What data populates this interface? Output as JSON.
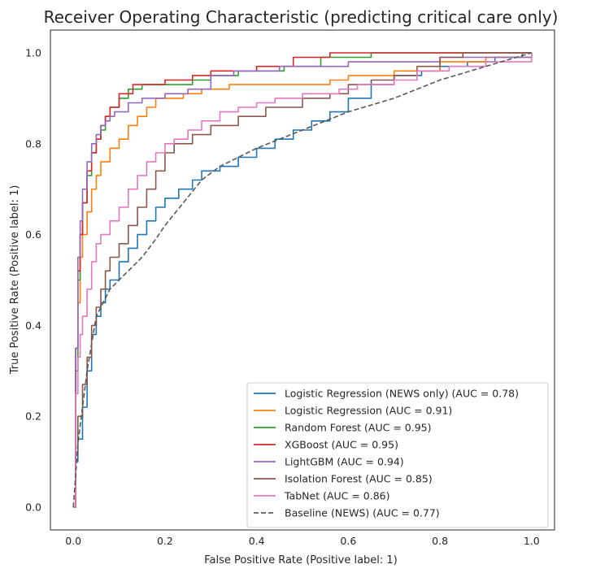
{
  "chart_data": {
    "type": "line",
    "title": "Receiver Operating Characteristic (predicting critical care only)",
    "xlabel": "False Positive Rate (Positive label: 1)",
    "ylabel": "True Positive Rate (Positive label: 1)",
    "xlim": [
      -0.05,
      1.05
    ],
    "ylim": [
      -0.05,
      1.05
    ],
    "xticks": [
      "0.0",
      "0.2",
      "0.4",
      "0.6",
      "0.8",
      "1.0"
    ],
    "yticks": [
      "0.0",
      "0.2",
      "0.4",
      "0.6",
      "0.8",
      "1.0"
    ],
    "grid": false,
    "legend_position": "lower-right",
    "series": [
      {
        "name": "Logistic Regression (NEWS only) (AUC = 0.78)",
        "color": "#1f77b4",
        "dash": false,
        "points": [
          [
            0,
            0
          ],
          [
            0.005,
            0.1
          ],
          [
            0.01,
            0.15
          ],
          [
            0.02,
            0.22
          ],
          [
            0.03,
            0.3
          ],
          [
            0.04,
            0.38
          ],
          [
            0.05,
            0.42
          ],
          [
            0.06,
            0.45
          ],
          [
            0.07,
            0.48
          ],
          [
            0.08,
            0.5
          ],
          [
            0.1,
            0.54
          ],
          [
            0.12,
            0.57
          ],
          [
            0.14,
            0.6
          ],
          [
            0.16,
            0.63
          ],
          [
            0.18,
            0.66
          ],
          [
            0.2,
            0.68
          ],
          [
            0.23,
            0.7
          ],
          [
            0.26,
            0.72
          ],
          [
            0.28,
            0.74
          ],
          [
            0.3,
            0.74
          ],
          [
            0.32,
            0.75
          ],
          [
            0.36,
            0.77
          ],
          [
            0.4,
            0.79
          ],
          [
            0.44,
            0.81
          ],
          [
            0.48,
            0.83
          ],
          [
            0.52,
            0.85
          ],
          [
            0.56,
            0.87
          ],
          [
            0.6,
            0.9
          ],
          [
            0.65,
            0.93
          ],
          [
            0.7,
            0.95
          ],
          [
            0.76,
            0.96
          ],
          [
            0.8,
            0.97
          ],
          [
            0.86,
            0.98
          ],
          [
            0.92,
            0.99
          ],
          [
            0.98,
            1.0
          ],
          [
            1.0,
            1.0
          ]
        ]
      },
      {
        "name": "Logistic Regression (AUC = 0.91)",
        "color": "#ff7f0e",
        "dash": false,
        "points": [
          [
            0,
            0
          ],
          [
            0.005,
            0.3
          ],
          [
            0.01,
            0.45
          ],
          [
            0.015,
            0.55
          ],
          [
            0.02,
            0.6
          ],
          [
            0.03,
            0.65
          ],
          [
            0.04,
            0.7
          ],
          [
            0.05,
            0.73
          ],
          [
            0.06,
            0.76
          ],
          [
            0.08,
            0.79
          ],
          [
            0.1,
            0.81
          ],
          [
            0.12,
            0.84
          ],
          [
            0.14,
            0.86
          ],
          [
            0.16,
            0.88
          ],
          [
            0.18,
            0.9
          ],
          [
            0.2,
            0.9
          ],
          [
            0.24,
            0.91
          ],
          [
            0.28,
            0.92
          ],
          [
            0.34,
            0.93
          ],
          [
            0.4,
            0.93
          ],
          [
            0.5,
            0.93
          ],
          [
            0.56,
            0.94
          ],
          [
            0.6,
            0.95
          ],
          [
            0.7,
            0.96
          ],
          [
            0.8,
            0.98
          ],
          [
            0.9,
            0.99
          ],
          [
            1.0,
            1.0
          ]
        ]
      },
      {
        "name": "Random Forest (AUC = 0.95)",
        "color": "#2ca02c",
        "dash": false,
        "points": [
          [
            0,
            0
          ],
          [
            0.005,
            0.3
          ],
          [
            0.01,
            0.5
          ],
          [
            0.015,
            0.6
          ],
          [
            0.02,
            0.67
          ],
          [
            0.03,
            0.73
          ],
          [
            0.04,
            0.78
          ],
          [
            0.05,
            0.81
          ],
          [
            0.06,
            0.83
          ],
          [
            0.07,
            0.86
          ],
          [
            0.08,
            0.88
          ],
          [
            0.1,
            0.9
          ],
          [
            0.12,
            0.92
          ],
          [
            0.15,
            0.93
          ],
          [
            0.2,
            0.93
          ],
          [
            0.26,
            0.94
          ],
          [
            0.3,
            0.95
          ],
          [
            0.36,
            0.96
          ],
          [
            0.46,
            0.97
          ],
          [
            0.54,
            0.99
          ],
          [
            0.65,
            1.0
          ],
          [
            1.0,
            1.0
          ]
        ]
      },
      {
        "name": "XGBoost (AUC = 0.95)",
        "color": "#d62728",
        "dash": false,
        "points": [
          [
            0,
            0
          ],
          [
            0.005,
            0.35
          ],
          [
            0.01,
            0.52
          ],
          [
            0.015,
            0.6
          ],
          [
            0.02,
            0.67
          ],
          [
            0.03,
            0.74
          ],
          [
            0.04,
            0.78
          ],
          [
            0.05,
            0.81
          ],
          [
            0.06,
            0.84
          ],
          [
            0.07,
            0.86
          ],
          [
            0.08,
            0.88
          ],
          [
            0.1,
            0.91
          ],
          [
            0.13,
            0.93
          ],
          [
            0.18,
            0.93
          ],
          [
            0.2,
            0.94
          ],
          [
            0.26,
            0.95
          ],
          [
            0.3,
            0.96
          ],
          [
            0.4,
            0.97
          ],
          [
            0.48,
            0.99
          ],
          [
            0.56,
            1.0
          ],
          [
            1.0,
            1.0
          ]
        ]
      },
      {
        "name": "LightGBM (AUC = 0.94)",
        "color": "#9467bd",
        "dash": false,
        "points": [
          [
            0,
            0
          ],
          [
            0.005,
            0.35
          ],
          [
            0.01,
            0.55
          ],
          [
            0.015,
            0.63
          ],
          [
            0.02,
            0.7
          ],
          [
            0.03,
            0.76
          ],
          [
            0.04,
            0.8
          ],
          [
            0.05,
            0.82
          ],
          [
            0.06,
            0.84
          ],
          [
            0.07,
            0.85
          ],
          [
            0.08,
            0.86
          ],
          [
            0.09,
            0.87
          ],
          [
            0.12,
            0.89
          ],
          [
            0.15,
            0.9
          ],
          [
            0.2,
            0.91
          ],
          [
            0.25,
            0.92
          ],
          [
            0.3,
            0.95
          ],
          [
            0.35,
            0.96
          ],
          [
            0.45,
            0.97
          ],
          [
            0.6,
            0.98
          ],
          [
            0.8,
            0.99
          ],
          [
            1.0,
            1.0
          ]
        ]
      },
      {
        "name": "Isolation Forest (AUC = 0.85)",
        "color": "#8c564b",
        "dash": false,
        "points": [
          [
            0,
            0
          ],
          [
            0.005,
            0.12
          ],
          [
            0.01,
            0.2
          ],
          [
            0.02,
            0.27
          ],
          [
            0.03,
            0.33
          ],
          [
            0.04,
            0.4
          ],
          [
            0.05,
            0.44
          ],
          [
            0.06,
            0.48
          ],
          [
            0.07,
            0.52
          ],
          [
            0.08,
            0.55
          ],
          [
            0.1,
            0.58
          ],
          [
            0.12,
            0.62
          ],
          [
            0.14,
            0.66
          ],
          [
            0.16,
            0.7
          ],
          [
            0.18,
            0.74
          ],
          [
            0.2,
            0.78
          ],
          [
            0.22,
            0.8
          ],
          [
            0.26,
            0.82
          ],
          [
            0.3,
            0.84
          ],
          [
            0.36,
            0.86
          ],
          [
            0.42,
            0.88
          ],
          [
            0.5,
            0.9
          ],
          [
            0.56,
            0.91
          ],
          [
            0.6,
            0.93
          ],
          [
            0.65,
            0.94
          ],
          [
            0.7,
            0.95
          ],
          [
            0.75,
            0.97
          ],
          [
            0.8,
            0.99
          ],
          [
            0.85,
            1.0
          ],
          [
            1.0,
            1.0
          ]
        ]
      },
      {
        "name": "TabNet (AUC = 0.86)",
        "color": "#e377c2",
        "dash": false,
        "points": [
          [
            0,
            0
          ],
          [
            0.005,
            0.25
          ],
          [
            0.01,
            0.33
          ],
          [
            0.015,
            0.38
          ],
          [
            0.02,
            0.42
          ],
          [
            0.03,
            0.48
          ],
          [
            0.04,
            0.54
          ],
          [
            0.05,
            0.58
          ],
          [
            0.06,
            0.6
          ],
          [
            0.08,
            0.63
          ],
          [
            0.1,
            0.66
          ],
          [
            0.12,
            0.7
          ],
          [
            0.14,
            0.73
          ],
          [
            0.16,
            0.76
          ],
          [
            0.18,
            0.78
          ],
          [
            0.2,
            0.8
          ],
          [
            0.22,
            0.81
          ],
          [
            0.25,
            0.83
          ],
          [
            0.28,
            0.85
          ],
          [
            0.32,
            0.87
          ],
          [
            0.36,
            0.88
          ],
          [
            0.4,
            0.89
          ],
          [
            0.44,
            0.9
          ],
          [
            0.5,
            0.91
          ],
          [
            0.58,
            0.92
          ],
          [
            0.62,
            0.93
          ],
          [
            0.7,
            0.94
          ],
          [
            0.75,
            0.96
          ],
          [
            0.82,
            0.97
          ],
          [
            0.9,
            0.98
          ],
          [
            1.0,
            1.0
          ]
        ]
      },
      {
        "name": "Baseline (NEWS) (AUC = 0.77)",
        "color": "#595959",
        "dash": true,
        "points": [
          [
            0,
            0
          ],
          [
            0.01,
            0.14
          ],
          [
            0.02,
            0.22
          ],
          [
            0.03,
            0.3
          ],
          [
            0.04,
            0.36
          ],
          [
            0.05,
            0.42
          ],
          [
            0.08,
            0.48
          ],
          [
            0.1,
            0.5
          ],
          [
            0.12,
            0.52
          ],
          [
            0.15,
            0.55
          ],
          [
            0.18,
            0.59
          ],
          [
            0.2,
            0.62
          ],
          [
            0.24,
            0.67
          ],
          [
            0.28,
            0.72
          ],
          [
            0.32,
            0.75
          ],
          [
            0.4,
            0.79
          ],
          [
            0.5,
            0.83
          ],
          [
            0.6,
            0.87
          ],
          [
            0.7,
            0.9
          ],
          [
            0.8,
            0.94
          ],
          [
            0.9,
            0.97
          ],
          [
            1.0,
            1.0
          ]
        ]
      }
    ]
  }
}
